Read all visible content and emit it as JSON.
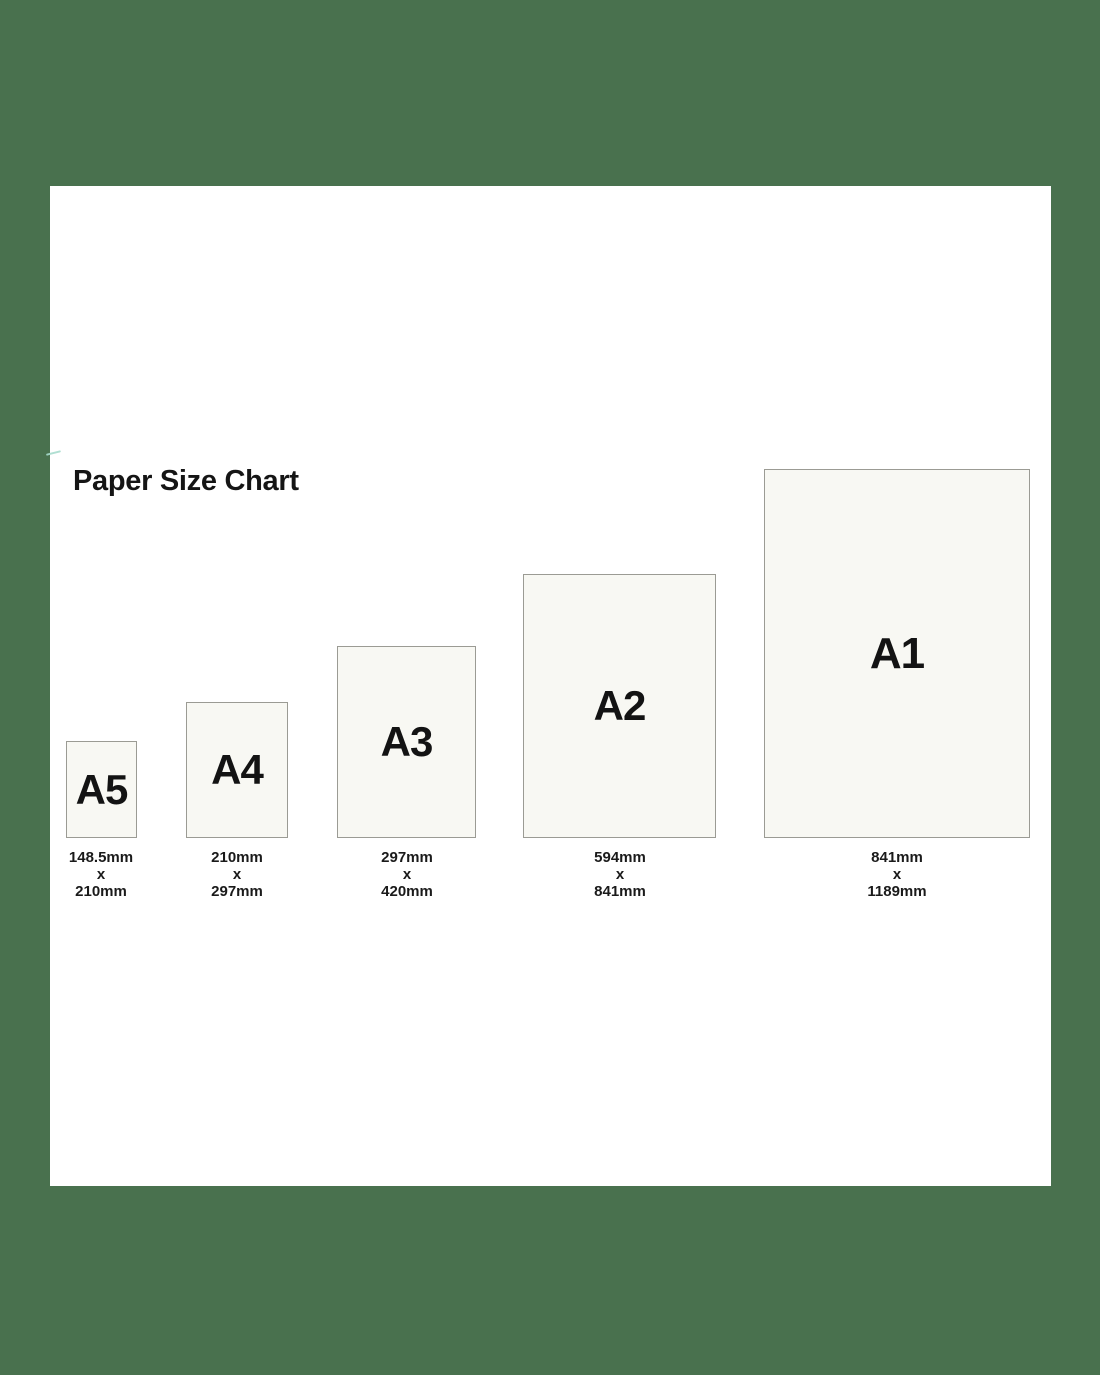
{
  "title": "Paper Size Chart",
  "colors": {
    "background_green": "#49714E",
    "card_white": "#FFFFFF",
    "paper_fill": "#F8F8F3",
    "paper_border": "#9B9B94",
    "text": "#151515",
    "artifact_teal": "#A7DCCD"
  },
  "papers": [
    {
      "label": "A5",
      "width_mm": "148.5mm",
      "separator": "x",
      "height_mm": "210mm"
    },
    {
      "label": "A4",
      "width_mm": "210mm",
      "separator": "x",
      "height_mm": "297mm"
    },
    {
      "label": "A3",
      "width_mm": "297mm",
      "separator": "x",
      "height_mm": "420mm"
    },
    {
      "label": "A2",
      "width_mm": "594mm",
      "separator": "x",
      "height_mm": "841mm"
    },
    {
      "label": "A1",
      "width_mm": "841mm",
      "separator": "x",
      "height_mm": "1189mm"
    }
  ]
}
